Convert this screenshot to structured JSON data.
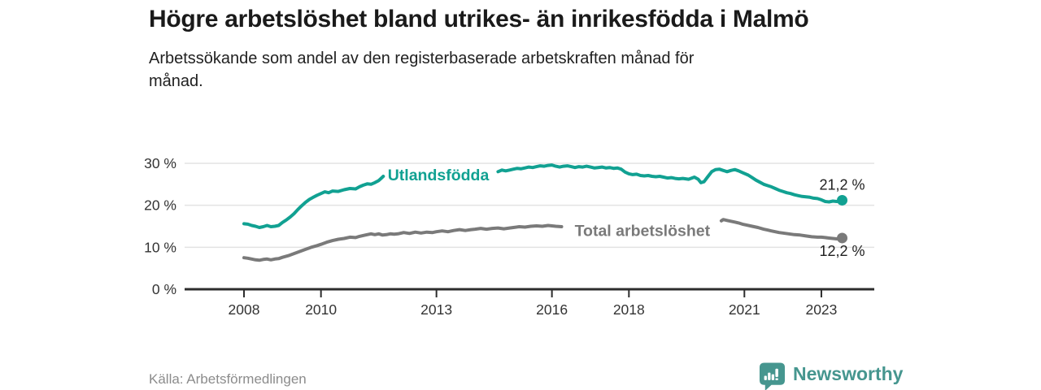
{
  "header": {
    "title": "Högre arbetslöshet bland utrikes- än inrikesfödda i Malmö",
    "subtitle": "Arbetssökande som andel av den registerbaserade arbetskraften månad för månad."
  },
  "footer": {
    "source": "Källa: Arbetsförmedlingen",
    "brand": "Newsworthy",
    "brand_color": "#46968F"
  },
  "chart_data": {
    "type": "line",
    "unit": "percent of registered labour force",
    "x_axis": {
      "ticks": [
        2008,
        2010,
        2013,
        2016,
        2018,
        2021,
        2023
      ],
      "range": [
        2006.45,
        2024.4
      ]
    },
    "y_axis": {
      "ticks": [
        0,
        10,
        20,
        30
      ],
      "tick_suffix": " %",
      "range": [
        0,
        31
      ]
    },
    "grid": "horizontal",
    "legend_position": "inline-labels",
    "series": [
      {
        "name": "Utlandsfödda",
        "color": "#11A192",
        "label": {
          "text": "Utlandsfödda",
          "year": 2013.05,
          "value": 27.3
        },
        "end_point": {
          "year": 2023.54,
          "value": 21.2
        },
        "end_label": {
          "text": "21,2 %",
          "position": "above"
        },
        "segments": [
          [
            [
              2008.0,
              15.6
            ],
            [
              2008.1,
              15.5
            ],
            [
              2008.2,
              15.2
            ],
            [
              2008.3,
              15.0
            ],
            [
              2008.4,
              14.7
            ],
            [
              2008.5,
              14.9
            ],
            [
              2008.6,
              15.2
            ],
            [
              2008.7,
              14.9
            ],
            [
              2008.8,
              15.0
            ],
            [
              2008.9,
              15.2
            ],
            [
              2009.0,
              15.9
            ],
            [
              2009.1,
              16.5
            ],
            [
              2009.2,
              17.2
            ],
            [
              2009.3,
              18.0
            ],
            [
              2009.4,
              19.0
            ],
            [
              2009.5,
              19.9
            ],
            [
              2009.6,
              20.7
            ],
            [
              2009.7,
              21.4
            ],
            [
              2009.8,
              21.9
            ],
            [
              2009.9,
              22.4
            ],
            [
              2010.0,
              22.8
            ],
            [
              2010.1,
              23.2
            ],
            [
              2010.2,
              23.0
            ],
            [
              2010.3,
              23.4
            ],
            [
              2010.45,
              23.3
            ],
            [
              2010.6,
              23.7
            ],
            [
              2010.75,
              24.0
            ],
            [
              2010.9,
              23.9
            ],
            [
              2011.0,
              24.4
            ],
            [
              2011.1,
              24.8
            ],
            [
              2011.2,
              25.1
            ],
            [
              2011.3,
              25.0
            ],
            [
              2011.4,
              25.4
            ],
            [
              2011.5,
              25.9
            ],
            [
              2011.56,
              26.4
            ],
            [
              2011.62,
              26.9
            ]
          ],
          [
            [
              2014.6,
              28.0
            ],
            [
              2014.7,
              28.4
            ],
            [
              2014.8,
              28.2
            ],
            [
              2014.9,
              28.4
            ],
            [
              2015.0,
              28.6
            ],
            [
              2015.1,
              28.8
            ],
            [
              2015.2,
              28.7
            ],
            [
              2015.3,
              28.9
            ],
            [
              2015.4,
              29.1
            ],
            [
              2015.5,
              29.0
            ],
            [
              2015.6,
              29.2
            ],
            [
              2015.7,
              29.4
            ],
            [
              2015.8,
              29.3
            ],
            [
              2015.9,
              29.5
            ],
            [
              2016.0,
              29.6
            ],
            [
              2016.1,
              29.3
            ],
            [
              2016.2,
              29.1
            ],
            [
              2016.3,
              29.3
            ],
            [
              2016.4,
              29.4
            ],
            [
              2016.5,
              29.2
            ],
            [
              2016.6,
              29.0
            ],
            [
              2016.7,
              29.2
            ],
            [
              2016.8,
              29.1
            ],
            [
              2016.9,
              29.3
            ],
            [
              2017.0,
              29.1
            ],
            [
              2017.1,
              28.9
            ],
            [
              2017.2,
              29.0
            ],
            [
              2017.3,
              29.1
            ],
            [
              2017.4,
              28.9
            ],
            [
              2017.5,
              29.0
            ],
            [
              2017.6,
              28.8
            ],
            [
              2017.7,
              28.9
            ],
            [
              2017.8,
              28.6
            ],
            [
              2017.9,
              27.9
            ],
            [
              2018.0,
              27.5
            ],
            [
              2018.1,
              27.3
            ],
            [
              2018.2,
              27.4
            ],
            [
              2018.3,
              27.1
            ],
            [
              2018.4,
              27.0
            ],
            [
              2018.5,
              27.1
            ],
            [
              2018.6,
              26.9
            ],
            [
              2018.7,
              26.8
            ],
            [
              2018.8,
              26.9
            ],
            [
              2018.9,
              26.7
            ],
            [
              2019.0,
              26.5
            ],
            [
              2019.1,
              26.6
            ],
            [
              2019.2,
              26.4
            ],
            [
              2019.3,
              26.3
            ],
            [
              2019.4,
              26.4
            ],
            [
              2019.55,
              26.2
            ],
            [
              2019.7,
              26.7
            ],
            [
              2019.8,
              26.2
            ],
            [
              2019.87,
              25.4
            ],
            [
              2019.95,
              25.6
            ],
            [
              2020.05,
              26.8
            ],
            [
              2020.15,
              28.0
            ],
            [
              2020.25,
              28.5
            ],
            [
              2020.35,
              28.6
            ],
            [
              2020.45,
              28.3
            ],
            [
              2020.55,
              28.0
            ],
            [
              2020.65,
              28.3
            ],
            [
              2020.75,
              28.5
            ],
            [
              2020.85,
              28.2
            ],
            [
              2020.95,
              27.8
            ],
            [
              2021.1,
              27.2
            ],
            [
              2021.2,
              26.6
            ],
            [
              2021.3,
              26.0
            ],
            [
              2021.4,
              25.5
            ],
            [
              2021.5,
              25.0
            ],
            [
              2021.6,
              24.7
            ],
            [
              2021.7,
              24.4
            ],
            [
              2021.8,
              24.0
            ],
            [
              2021.9,
              23.6
            ],
            [
              2022.0,
              23.3
            ],
            [
              2022.1,
              23.0
            ],
            [
              2022.2,
              22.8
            ],
            [
              2022.3,
              22.5
            ],
            [
              2022.4,
              22.3
            ],
            [
              2022.5,
              22.1
            ],
            [
              2022.6,
              22.0
            ],
            [
              2022.7,
              21.9
            ],
            [
              2022.8,
              21.7
            ],
            [
              2022.9,
              21.6
            ],
            [
              2023.0,
              21.3
            ],
            [
              2023.1,
              20.9
            ],
            [
              2023.2,
              20.8
            ],
            [
              2023.3,
              21.0
            ],
            [
              2023.4,
              20.9
            ],
            [
              2023.47,
              21.0
            ],
            [
              2023.54,
              21.2
            ]
          ]
        ]
      },
      {
        "name": "Total arbetslöshet",
        "color": "#7A7A7A",
        "label": {
          "text": "Total arbetslöshet",
          "year": 2018.35,
          "value": 14.0
        },
        "end_point": {
          "year": 2023.54,
          "value": 12.2
        },
        "end_label": {
          "text": "12,2 %",
          "position": "below"
        },
        "segments": [
          [
            [
              2008.0,
              7.5
            ],
            [
              2008.1,
              7.4
            ],
            [
              2008.2,
              7.2
            ],
            [
              2008.3,
              7.0
            ],
            [
              2008.4,
              6.9
            ],
            [
              2008.5,
              7.1
            ],
            [
              2008.6,
              7.2
            ],
            [
              2008.7,
              7.0
            ],
            [
              2008.8,
              7.2
            ],
            [
              2008.9,
              7.3
            ],
            [
              2009.0,
              7.6
            ],
            [
              2009.15,
              8.0
            ],
            [
              2009.3,
              8.5
            ],
            [
              2009.45,
              9.0
            ],
            [
              2009.6,
              9.5
            ],
            [
              2009.75,
              10.0
            ],
            [
              2009.9,
              10.4
            ],
            [
              2010.0,
              10.7
            ],
            [
              2010.15,
              11.2
            ],
            [
              2010.3,
              11.6
            ],
            [
              2010.45,
              11.9
            ],
            [
              2010.6,
              12.1
            ],
            [
              2010.75,
              12.4
            ],
            [
              2010.9,
              12.3
            ],
            [
              2011.0,
              12.6
            ],
            [
              2011.15,
              12.9
            ],
            [
              2011.3,
              13.2
            ],
            [
              2011.4,
              13.0
            ],
            [
              2011.5,
              13.2
            ],
            [
              2011.6,
              12.9
            ],
            [
              2011.7,
              13.0
            ],
            [
              2011.8,
              13.2
            ],
            [
              2011.9,
              13.1
            ],
            [
              2012.0,
              13.2
            ],
            [
              2012.15,
              13.5
            ],
            [
              2012.3,
              13.3
            ],
            [
              2012.45,
              13.6
            ],
            [
              2012.6,
              13.4
            ],
            [
              2012.75,
              13.6
            ],
            [
              2012.9,
              13.5
            ],
            [
              2013.0,
              13.7
            ],
            [
              2013.15,
              13.9
            ],
            [
              2013.3,
              13.7
            ],
            [
              2013.45,
              14.0
            ],
            [
              2013.6,
              14.2
            ],
            [
              2013.75,
              14.0
            ],
            [
              2013.9,
              14.2
            ],
            [
              2014.0,
              14.3
            ],
            [
              2014.15,
              14.5
            ],
            [
              2014.3,
              14.3
            ],
            [
              2014.45,
              14.5
            ],
            [
              2014.6,
              14.6
            ],
            [
              2014.75,
              14.4
            ],
            [
              2014.9,
              14.6
            ],
            [
              2015.0,
              14.7
            ],
            [
              2015.15,
              14.9
            ],
            [
              2015.3,
              14.8
            ],
            [
              2015.45,
              15.0
            ],
            [
              2015.6,
              15.1
            ],
            [
              2015.75,
              15.0
            ],
            [
              2015.9,
              15.2
            ],
            [
              2016.0,
              15.1
            ],
            [
              2016.1,
              15.0
            ],
            [
              2016.25,
              14.9
            ]
          ],
          [
            [
              2020.4,
              16.3
            ],
            [
              2020.45,
              16.6
            ],
            [
              2020.55,
              16.4
            ],
            [
              2020.65,
              16.2
            ],
            [
              2020.75,
              16.0
            ],
            [
              2020.85,
              15.8
            ],
            [
              2020.95,
              15.5
            ],
            [
              2021.05,
              15.3
            ],
            [
              2021.2,
              15.0
            ],
            [
              2021.35,
              14.7
            ],
            [
              2021.5,
              14.3
            ],
            [
              2021.6,
              14.1
            ],
            [
              2021.7,
              13.9
            ],
            [
              2021.8,
              13.7
            ],
            [
              2021.9,
              13.5
            ],
            [
              2022.0,
              13.4
            ],
            [
              2022.15,
              13.2
            ],
            [
              2022.3,
              13.0
            ],
            [
              2022.45,
              12.9
            ],
            [
              2022.6,
              12.7
            ],
            [
              2022.75,
              12.5
            ],
            [
              2022.9,
              12.4
            ],
            [
              2023.0,
              12.4
            ],
            [
              2023.1,
              12.3
            ],
            [
              2023.2,
              12.2
            ],
            [
              2023.3,
              12.1
            ],
            [
              2023.4,
              12.0
            ],
            [
              2023.47,
              12.1
            ],
            [
              2023.54,
              12.2
            ]
          ]
        ]
      }
    ]
  }
}
